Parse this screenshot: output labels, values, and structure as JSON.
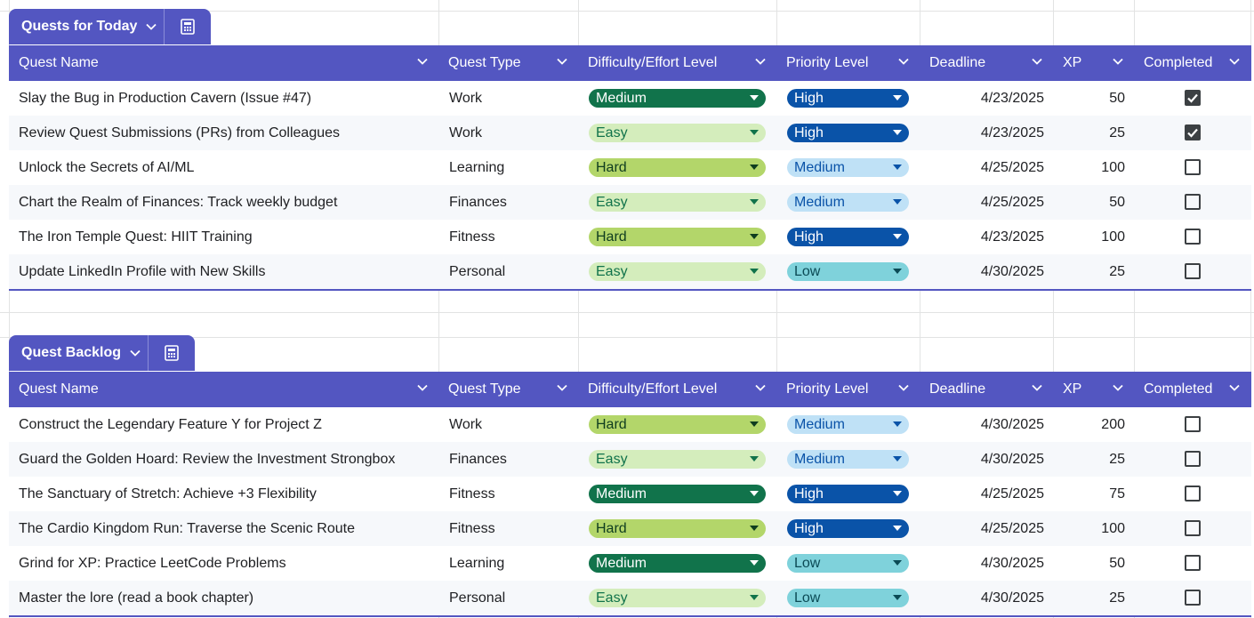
{
  "dropdowns": {
    "difficulty": [
      {
        "option": "Easy",
        "bg": "#d4edbc",
        "fg": "#11734b"
      },
      {
        "option": "Medium",
        "bg": "#11734b",
        "fg": "#ffffff"
      },
      {
        "option": "Hard",
        "bg": "#b3d66a",
        "fg": "#0f3d1f"
      }
    ],
    "priority": [
      {
        "option": "Low",
        "bg": "#7fd2db",
        "fg": "#0b4a55"
      },
      {
        "option": "Medium",
        "bg": "#bfe1f6",
        "fg": "#0a53a8"
      },
      {
        "option": "High",
        "bg": "#0a53a8",
        "fg": "#ffffff"
      }
    ]
  },
  "tables": [
    {
      "title": "Quests for Today",
      "columns": [
        "Quest Name",
        "Quest Type",
        "Difficulty/Effort Level",
        "Priority Level",
        "Deadline",
        "XP",
        "Completed"
      ],
      "rows": [
        {
          "name": "Slay the Bug in Production Cavern (Issue #47)",
          "type": "Work",
          "difficulty": "Medium",
          "priority": "High",
          "deadline": "4/23/2025",
          "xp": 50,
          "completed": true
        },
        {
          "name": "Review Quest Submissions (PRs) from Colleagues",
          "type": "Work",
          "difficulty": "Easy",
          "priority": "High",
          "deadline": "4/23/2025",
          "xp": 25,
          "completed": true
        },
        {
          "name": "Unlock the Secrets of AI/ML",
          "type": "Learning",
          "difficulty": "Hard",
          "priority": "Medium",
          "deadline": "4/25/2025",
          "xp": 100,
          "completed": false
        },
        {
          "name": "Chart the Realm of Finances: Track weekly budget",
          "type": "Finances",
          "difficulty": "Easy",
          "priority": "Medium",
          "deadline": "4/25/2025",
          "xp": 50,
          "completed": false
        },
        {
          "name": "The Iron Temple Quest: HIIT Training",
          "type": "Fitness",
          "difficulty": "Hard",
          "priority": "High",
          "deadline": "4/23/2025",
          "xp": 100,
          "completed": false
        },
        {
          "name": "Update LinkedIn Profile with New Skills",
          "type": "Personal",
          "difficulty": "Easy",
          "priority": "Low",
          "deadline": "4/30/2025",
          "xp": 25,
          "completed": false
        }
      ]
    },
    {
      "title": "Quest Backlog",
      "columns": [
        "Quest Name",
        "Quest Type",
        "Difficulty/Effort Level",
        "Priority Level",
        "Deadline",
        "XP",
        "Completed"
      ],
      "rows": [
        {
          "name": "Construct the Legendary Feature Y for Project Z",
          "type": "Work",
          "difficulty": "Hard",
          "priority": "Medium",
          "deadline": "4/30/2025",
          "xp": 200,
          "completed": false
        },
        {
          "name": "Guard the Golden Hoard: Review the Investment Strongbox",
          "type": "Finances",
          "difficulty": "Easy",
          "priority": "Medium",
          "deadline": "4/30/2025",
          "xp": 25,
          "completed": false
        },
        {
          "name": "The Sanctuary of Stretch: Achieve +3 Flexibility",
          "type": "Fitness",
          "difficulty": "Medium",
          "priority": "High",
          "deadline": "4/25/2025",
          "xp": 75,
          "completed": false
        },
        {
          "name": "The Cardio Kingdom Run: Traverse the Scenic Route",
          "type": "Fitness",
          "difficulty": "Hard",
          "priority": "High",
          "deadline": "4/25/2025",
          "xp": 100,
          "completed": false
        },
        {
          "name": "Grind for XP: Practice LeetCode Problems",
          "type": "Learning",
          "difficulty": "Medium",
          "priority": "Low",
          "deadline": "4/30/2025",
          "xp": 50,
          "completed": false
        },
        {
          "name": "Master the lore (read a book chapter)",
          "type": "Personal",
          "difficulty": "Easy",
          "priority": "Low",
          "deadline": "4/30/2025",
          "xp": 25,
          "completed": false
        }
      ]
    }
  ]
}
